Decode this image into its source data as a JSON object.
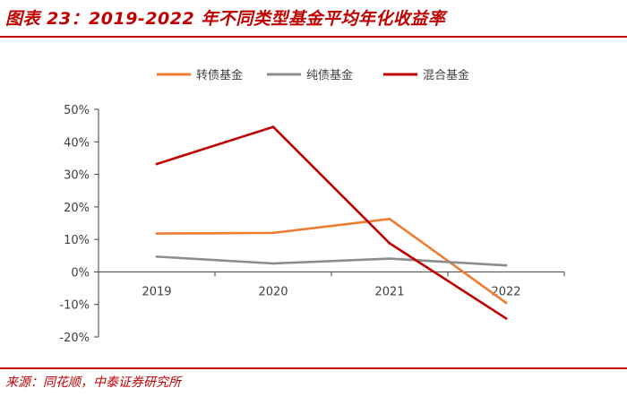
{
  "title": "图表 23：2019-2022 年不同类型基金平均年化收益率",
  "source": "来源：同花顺，中泰证券研究所",
  "chart_data": {
    "type": "line",
    "title": "2019-2022 年不同类型基金平均年化收益率",
    "xlabel": "",
    "ylabel": "",
    "categories": [
      "2019",
      "2020",
      "2021",
      "2022"
    ],
    "ylim": [
      -20,
      50
    ],
    "yticks": [
      50,
      40,
      30,
      20,
      10,
      0,
      -10,
      -20
    ],
    "ytick_labels": [
      "50%",
      "40%",
      "30%",
      "20%",
      "10%",
      "0%",
      "-10%",
      "-20%"
    ],
    "grid": false,
    "legend_position": "top",
    "series": [
      {
        "name": "转债基金",
        "color": "#ed7d31",
        "values": [
          11.8,
          12.0,
          16.3,
          -9.5
        ]
      },
      {
        "name": "纯债基金",
        "color": "#8c8c8c",
        "values": [
          4.7,
          2.6,
          4.1,
          2.0
        ]
      },
      {
        "name": "混合基金",
        "color": "#c00000",
        "values": [
          33.2,
          44.6,
          8.8,
          -14.3
        ]
      }
    ]
  }
}
